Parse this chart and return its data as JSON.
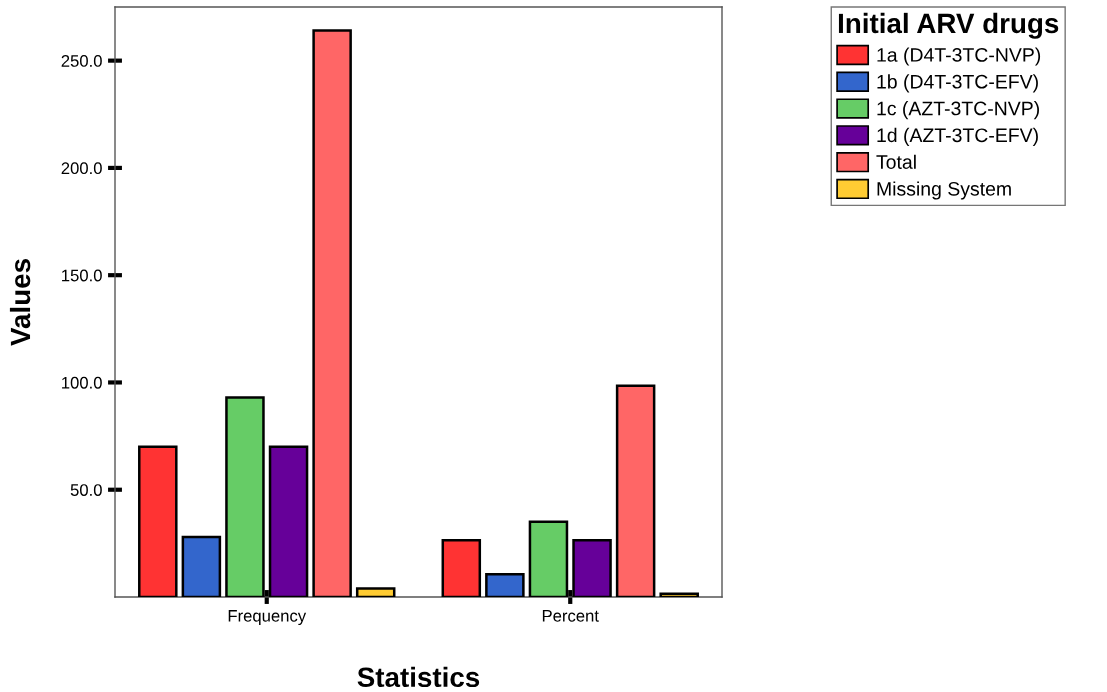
{
  "chart_data": {
    "type": "bar",
    "xlabel": "Statistics",
    "ylabel": "Values",
    "categories": [
      "Frequency",
      "Percent"
    ],
    "series": [
      {
        "name": "1a (D4T-3TC-NVP)",
        "color": "#ff3333",
        "values": [
          70,
          26.4
        ]
      },
      {
        "name": "1b (D4T-3TC-EFV)",
        "color": "#3366cc",
        "values": [
          28,
          10.6
        ]
      },
      {
        "name": "1c (AZT-3TC-NVP)",
        "color": "#66cc66",
        "values": [
          93,
          35.1
        ]
      },
      {
        "name": "1d (AZT-3TC-EFV)",
        "color": "#660099",
        "values": [
          70,
          26.4
        ]
      },
      {
        "name": "Total",
        "color": "#ff6666",
        "values": [
          264,
          98.5
        ]
      },
      {
        "name": "Missing System",
        "color": "#ffcc33",
        "values": [
          4,
          1.5
        ]
      }
    ],
    "legend_title": "Initial ARV drugs",
    "ylim": [
      0,
      275
    ],
    "yticks": [
      {
        "value": 50,
        "label": "50.0"
      },
      {
        "value": 100,
        "label": "100.0"
      },
      {
        "value": 150,
        "label": "150.0"
      },
      {
        "value": 200,
        "label": "200.0"
      },
      {
        "value": 250,
        "label": "250.0"
      }
    ],
    "grid": false,
    "legend": "top right"
  }
}
